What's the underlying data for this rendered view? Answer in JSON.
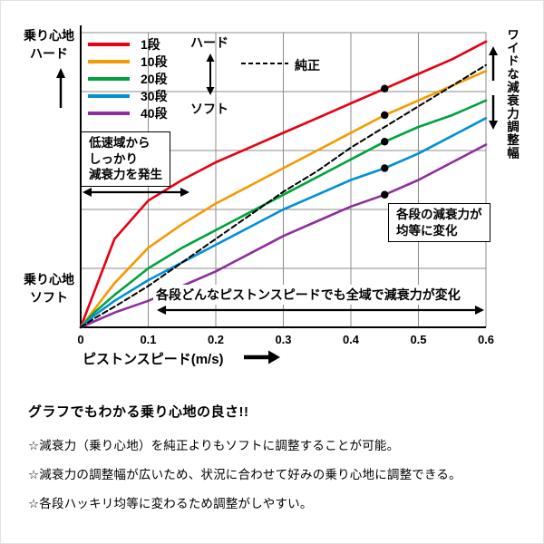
{
  "chart_data": {
    "type": "line",
    "xlabel": "ピストンスピード(m/s)",
    "x_ticks": [
      "0",
      "0.1",
      "0.2",
      "0.3",
      "0.4",
      "0.5",
      "0.6"
    ],
    "x_tick_values": [
      0,
      0.1,
      0.2,
      0.3,
      0.4,
      0.5,
      0.6
    ],
    "x_max": 0.6,
    "y_axis": {
      "top_label": "乗り心地\nハード",
      "bottom_label": "乗り心地\nソフト",
      "scale_note": "相対減衰力 0–1（ソフト→ハード、目盛なし）"
    },
    "grid": true,
    "legend_position": "top-left-inside",
    "x": [
      0,
      0.02,
      0.05,
      0.1,
      0.15,
      0.2,
      0.25,
      0.3,
      0.35,
      0.4,
      0.45,
      0.5,
      0.55,
      0.6
    ],
    "series": [
      {
        "name": "1段",
        "color": "#e60012",
        "dashed": false,
        "values": [
          0,
          0.12,
          0.3,
          0.43,
          0.5,
          0.56,
          0.61,
          0.66,
          0.71,
          0.76,
          0.81,
          0.86,
          0.91,
          0.97
        ]
      },
      {
        "name": "10段",
        "color": "#f59a00",
        "dashed": false,
        "values": [
          0,
          0.06,
          0.15,
          0.27,
          0.35,
          0.42,
          0.48,
          0.54,
          0.6,
          0.66,
          0.72,
          0.77,
          0.82,
          0.87
        ]
      },
      {
        "name": "20段",
        "color": "#00a23e",
        "dashed": false,
        "values": [
          0,
          0.05,
          0.11,
          0.2,
          0.27,
          0.33,
          0.39,
          0.45,
          0.51,
          0.57,
          0.63,
          0.68,
          0.72,
          0.77
        ]
      },
      {
        "name": "30段",
        "color": "#0090d7",
        "dashed": false,
        "values": [
          0,
          0.04,
          0.09,
          0.16,
          0.22,
          0.28,
          0.34,
          0.4,
          0.45,
          0.5,
          0.54,
          0.59,
          0.65,
          0.71
        ]
      },
      {
        "name": "40段",
        "color": "#8e2f9c",
        "dashed": false,
        "values": [
          0,
          0.02,
          0.05,
          0.09,
          0.14,
          0.19,
          0.25,
          0.31,
          0.36,
          0.41,
          0.45,
          0.5,
          0.56,
          0.62
        ]
      },
      {
        "name": "純正",
        "color": "#000000",
        "dashed": true,
        "values": [
          0,
          0.03,
          0.07,
          0.14,
          0.22,
          0.3,
          0.38,
          0.46,
          0.53,
          0.61,
          0.68,
          0.75,
          0.82,
          0.89
        ]
      }
    ],
    "dots": {
      "x": 0.45,
      "series": [
        "1段",
        "10段",
        "20段",
        "30段",
        "40段"
      ],
      "color": "#000000"
    }
  },
  "legend_extra": {
    "hard": "ハード",
    "soft": "ソフト",
    "stock": "純正"
  },
  "annotations": {
    "low_speed_box": "低速域から\nしっかり\n減衰力を発生",
    "equal_step_box": "各段の減衰力が\n均等に変化",
    "full_range_text": "各段どんなピストンスピードでも全域で減衰力が変化",
    "wide_range_vertical": "ワイドな減衰力調整幅"
  },
  "footer": {
    "title": "グラフでもわかる乗り心地の良さ!!",
    "bullets": [
      "☆減衰力（乗り心地）を純正よりもソフトに調整することが可能。",
      "☆減衰力の調整幅が広いため、状況に合わせて好みの乗り心地に調整できる。",
      "☆各段ハッキリ均等に変わるため調整がしやすい。"
    ]
  }
}
